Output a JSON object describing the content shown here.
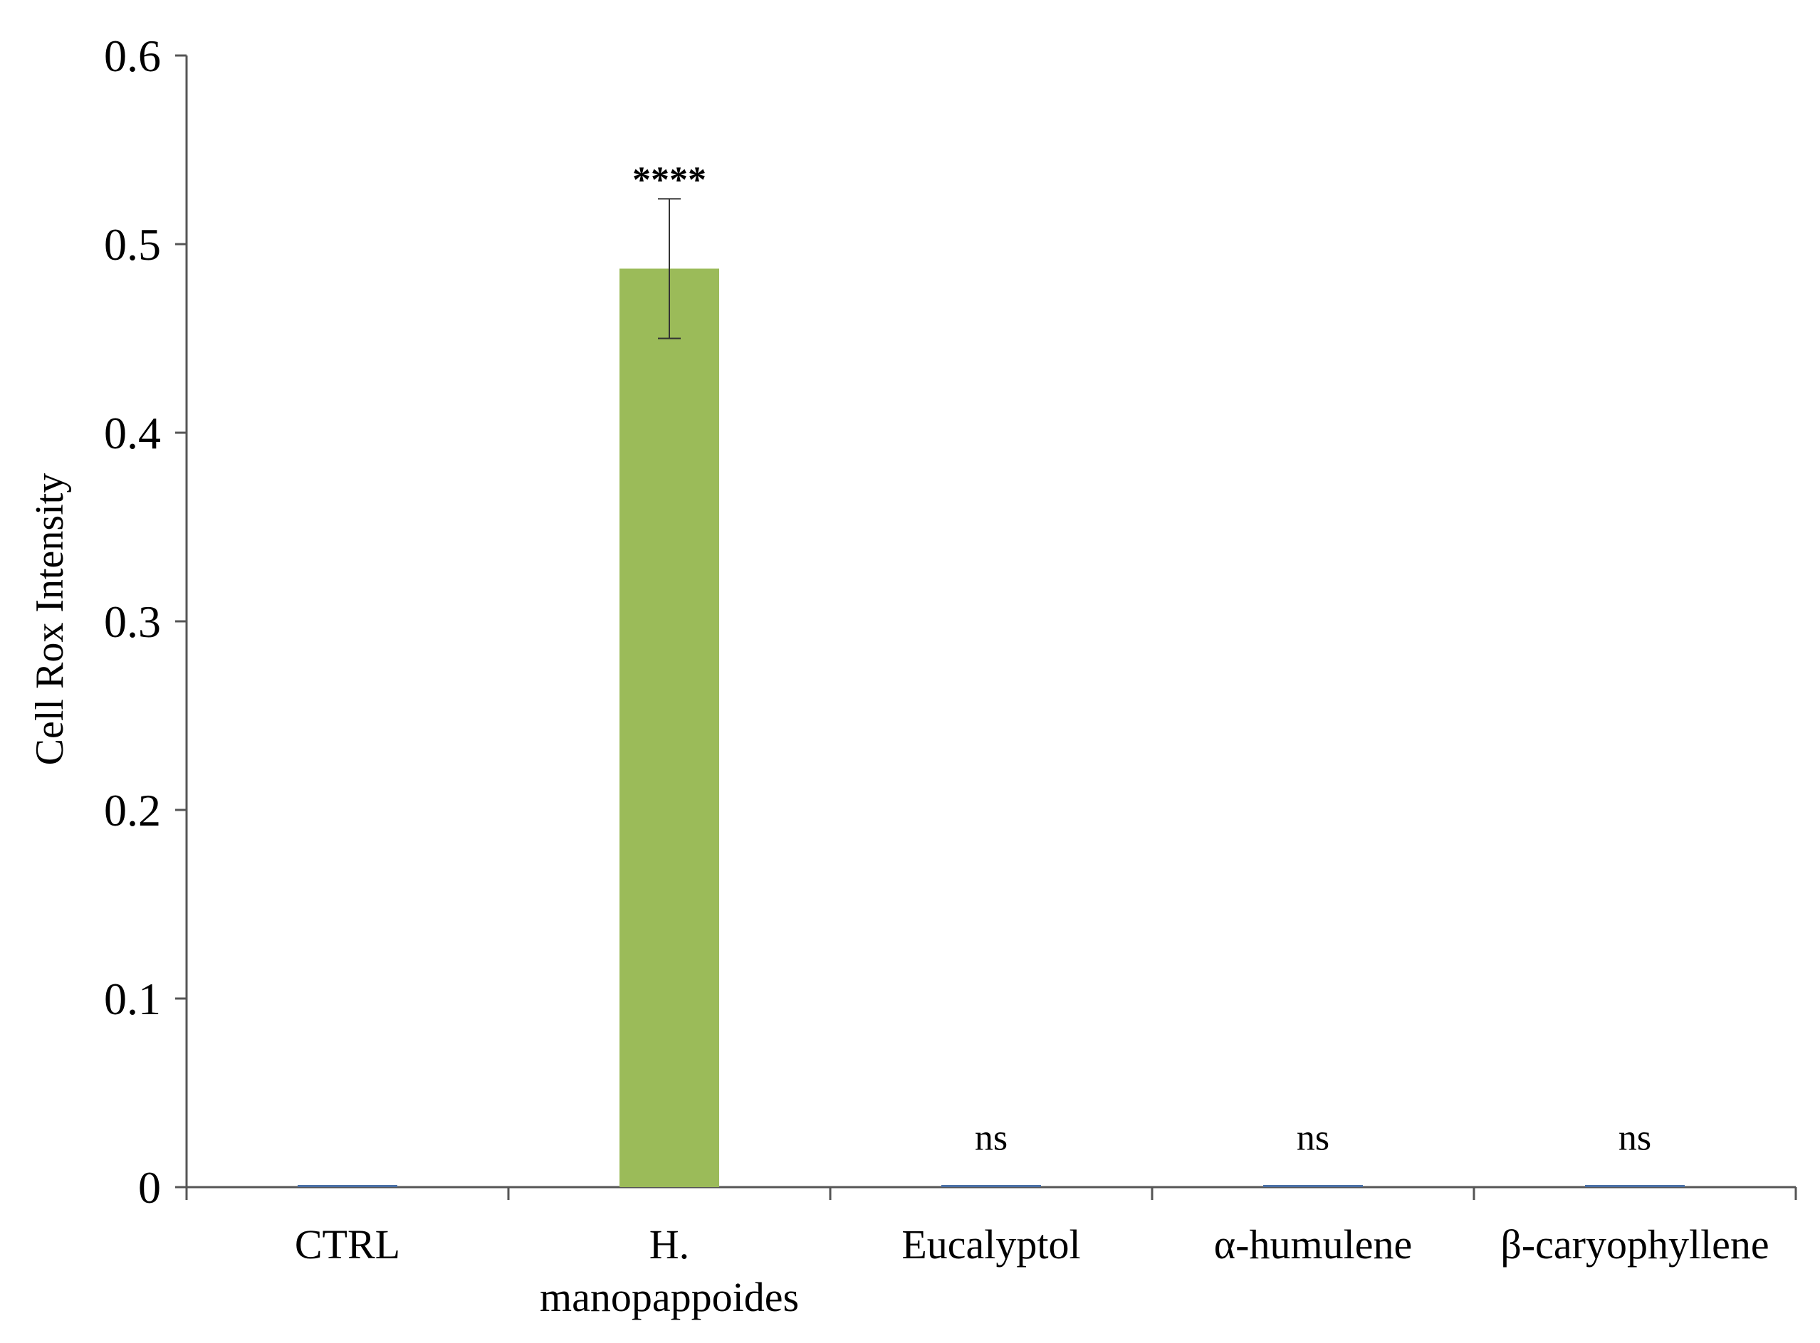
{
  "chart_data": {
    "type": "bar",
    "title": "",
    "xlabel": "",
    "ylabel": "Cell Rox Intensity",
    "ylim": [
      0,
      0.6
    ],
    "yticks": [
      "0",
      "0.1",
      "0.2",
      "0.3",
      "0.4",
      "0.5",
      "0.6"
    ],
    "categories": [
      [
        "CTRL"
      ],
      [
        "H.",
        "manopappoides"
      ],
      [
        "Eucalyptol"
      ],
      [
        "α-humulene"
      ],
      [
        "β-caryophyllene"
      ]
    ],
    "values": [
      0.001,
      0.487,
      0.001,
      0.001,
      0.001
    ],
    "errors": [
      0.0,
      0.037,
      0.0,
      0.0,
      0.0
    ],
    "annotations": [
      "",
      "****",
      "ns",
      "ns",
      "ns"
    ],
    "bar_colors": [
      "#4a6fa5",
      "#9bbb59",
      "#4a6fa5",
      "#4a6fa5",
      "#4a6fa5"
    ],
    "grid": false,
    "legend": "none"
  }
}
